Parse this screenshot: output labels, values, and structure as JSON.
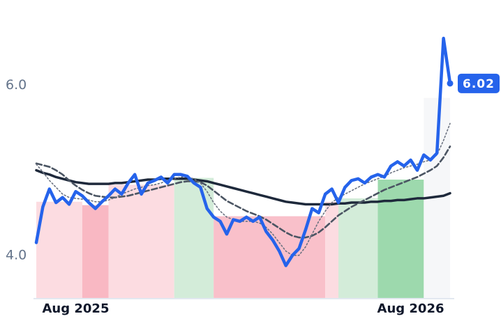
{
  "chart_data": {
    "type": "line",
    "x": [
      null,
      null,
      null,
      null,
      null,
      null,
      "Aug 2025",
      null,
      null,
      null,
      null,
      null,
      null,
      null,
      null,
      null,
      null,
      null,
      null,
      null,
      null,
      null,
      null,
      null,
      null,
      null,
      null,
      null,
      null,
      null,
      null,
      null,
      null,
      null,
      null,
      null,
      null,
      null,
      null,
      null,
      null,
      null,
      null,
      null,
      null,
      null,
      null,
      null,
      null,
      null,
      null,
      null,
      null,
      null,
      null,
      null,
      null,
      "Aug 2026",
      null,
      null,
      null,
      null,
      null,
      null
    ],
    "series": [
      {
        "color": "#2563eb",
        "values": [
          4.15,
          4.57,
          4.78,
          4.62,
          4.68,
          4.6,
          4.75,
          4.7,
          4.62,
          4.55,
          4.63,
          4.7,
          4.78,
          4.72,
          4.85,
          4.95,
          4.72,
          4.85,
          4.88,
          4.92,
          4.85,
          4.95,
          4.95,
          4.93,
          4.85,
          4.8,
          4.55,
          4.45,
          4.4,
          4.25,
          4.42,
          4.4,
          4.45,
          4.4,
          4.45,
          4.28,
          4.18,
          4.05,
          3.88,
          4.0,
          4.08,
          4.3,
          4.55,
          4.5,
          4.72,
          4.78,
          4.62,
          4.8,
          4.88,
          4.9,
          4.85,
          4.92,
          4.95,
          4.92,
          5.05,
          5.1,
          5.05,
          5.12,
          5.0,
          5.18,
          5.12,
          5.2,
          6.55,
          6.02
        ]
      },
      {
        "color": "#6b7280",
        "values": [
          5.07,
          4.98,
          4.88,
          4.8,
          4.72,
          4.68,
          4.67,
          4.66,
          4.65,
          4.63,
          4.63,
          4.65,
          4.68,
          4.72,
          4.75,
          4.78,
          4.8,
          4.82,
          4.83,
          4.85,
          4.88,
          4.9,
          4.92,
          4.92,
          4.9,
          4.85,
          4.75,
          4.62,
          4.52,
          4.45,
          4.42,
          4.4,
          4.4,
          4.4,
          4.38,
          4.33,
          4.25,
          4.15,
          4.05,
          4.0,
          4.0,
          4.1,
          4.25,
          4.4,
          4.52,
          4.62,
          4.68,
          4.72,
          4.76,
          4.8,
          4.84,
          4.87,
          4.9,
          4.93,
          4.97,
          5.0,
          5.03,
          5.05,
          5.07,
          5.1,
          5.12,
          5.18,
          5.35,
          5.55
        ]
      },
      {
        "color": "#4b5563",
        "values": [
          5.08,
          5.06,
          5.04,
          5.0,
          4.95,
          4.88,
          4.82,
          4.77,
          4.73,
          4.7,
          4.69,
          4.68,
          4.68,
          4.69,
          4.7,
          4.72,
          4.74,
          4.76,
          4.78,
          4.8,
          4.82,
          4.84,
          4.86,
          4.87,
          4.87,
          4.86,
          4.82,
          4.76,
          4.7,
          4.64,
          4.6,
          4.56,
          4.52,
          4.49,
          4.46,
          4.42,
          4.37,
          4.32,
          4.27,
          4.23,
          4.21,
          4.21,
          4.23,
          4.27,
          4.33,
          4.4,
          4.47,
          4.52,
          4.57,
          4.61,
          4.65,
          4.69,
          4.73,
          4.77,
          4.8,
          4.83,
          4.86,
          4.89,
          4.92,
          4.96,
          5.0,
          5.05,
          5.15,
          5.28
        ]
      },
      {
        "color": "#1e293b",
        "values": [
          5.0,
          4.97,
          4.95,
          4.92,
          4.9,
          4.88,
          4.86,
          4.85,
          4.84,
          4.84,
          4.84,
          4.84,
          4.85,
          4.85,
          4.86,
          4.87,
          4.88,
          4.89,
          4.89,
          4.9,
          4.9,
          4.9,
          4.9,
          4.9,
          4.89,
          4.88,
          4.87,
          4.85,
          4.83,
          4.81,
          4.79,
          4.77,
          4.75,
          4.73,
          4.71,
          4.69,
          4.67,
          4.65,
          4.63,
          4.62,
          4.61,
          4.6,
          4.6,
          4.6,
          4.6,
          4.6,
          4.61,
          4.61,
          4.62,
          4.62,
          4.62,
          4.63,
          4.63,
          4.64,
          4.64,
          4.65,
          4.65,
          4.66,
          4.67,
          4.67,
          4.68,
          4.69,
          4.7,
          4.73
        ]
      }
    ],
    "regions": [
      {
        "start": 0,
        "end": 7,
        "value": 4.63,
        "color": "#fcdce1"
      },
      {
        "start": 7,
        "end": 11,
        "value": 4.59,
        "color": "#f9b8c3"
      },
      {
        "start": 11,
        "end": 21,
        "value": 4.83,
        "color": "#fcdce1"
      },
      {
        "start": 21,
        "end": 27,
        "value": 4.91,
        "color": "#d3ecd9"
      },
      {
        "start": 27,
        "end": 44,
        "value": 4.46,
        "color": "#f9c0ca"
      },
      {
        "start": 44,
        "end": 46,
        "value": 4.63,
        "color": "#fcdce1"
      },
      {
        "start": 46,
        "end": 52,
        "value": 4.67,
        "color": "#d3ecd9"
      },
      {
        "start": 52,
        "end": 59,
        "value": 4.89,
        "color": "#9dd9ad"
      },
      {
        "start": 59,
        "end": 63,
        "value": 5.85,
        "color": "#f6f7f9"
      }
    ],
    "ylim": [
      3.5,
      7.0
    ],
    "yticks": [
      {
        "value": 4,
        "label": "4.0"
      },
      {
        "value": 6,
        "label": "6.0"
      }
    ]
  }
}
